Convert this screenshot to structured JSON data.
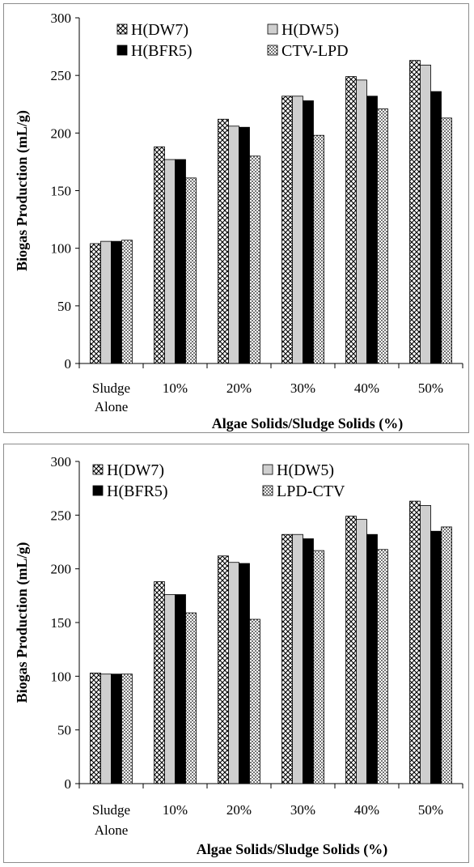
{
  "patterns": {
    "bar_border": "#000000",
    "light_gray": "#cfcfcf",
    "black": "#000000",
    "pattern_fill": "#ffffff"
  },
  "chart_data": [
    {
      "type": "bar",
      "categories": [
        "Sludge Alone",
        "10%",
        "20%",
        "30%",
        "40%",
        "50%"
      ],
      "category_lines": [
        [
          "Sludge",
          "Alone"
        ],
        [
          "10%"
        ],
        [
          "20%"
        ],
        [
          "30%"
        ],
        [
          "40%"
        ],
        [
          "50%"
        ]
      ],
      "xlabel": "Algae Solids/Sludge Solids (%)",
      "ylabel": "Biogas Production (mL/g)",
      "ylim": [
        0,
        300
      ],
      "yticks": [
        0,
        50,
        100,
        150,
        200,
        250,
        300
      ],
      "grid": false,
      "legend_position": "top-left, inside plot",
      "series": [
        {
          "name": "H(DW7)",
          "fill": "diamond-hatch",
          "values": [
            104,
            188,
            212,
            232,
            249,
            263
          ]
        },
        {
          "name": "H(DW5)",
          "fill": "light-gray",
          "values": [
            106,
            177,
            206,
            232,
            246,
            259
          ]
        },
        {
          "name": "H(BFR5)",
          "fill": "black",
          "values": [
            106,
            177,
            205,
            228,
            232,
            236
          ]
        },
        {
          "name": "CTV-LPD",
          "fill": "dots",
          "values": [
            107,
            161,
            180,
            198,
            221,
            213
          ]
        }
      ]
    },
    {
      "type": "bar",
      "categories": [
        "Sludge Alone",
        "10%",
        "20%",
        "30%",
        "40%",
        "50%"
      ],
      "category_lines": [
        [
          "Sludge",
          "Alone"
        ],
        [
          "10%"
        ],
        [
          "20%"
        ],
        [
          "30%"
        ],
        [
          "40%"
        ],
        [
          "50%"
        ]
      ],
      "xlabel": "Algae Solids/Sludge Solids (%)",
      "ylabel": "Biogas Production (mL/g)",
      "ylim": [
        0,
        300
      ],
      "yticks": [
        0,
        50,
        100,
        150,
        200,
        250,
        300
      ],
      "grid": false,
      "legend_position": "top-left, inside plot",
      "series": [
        {
          "name": "H(DW7)",
          "fill": "diamond-hatch",
          "values": [
            103,
            188,
            212,
            232,
            249,
            263
          ]
        },
        {
          "name": "H(DW5)",
          "fill": "light-gray",
          "values": [
            102,
            176,
            206,
            232,
            246,
            259
          ]
        },
        {
          "name": "H(BFR5)",
          "fill": "black",
          "values": [
            102,
            176,
            205,
            228,
            232,
            235
          ]
        },
        {
          "name": "LPD-CTV",
          "fill": "dots",
          "values": [
            102,
            159,
            153,
            217,
            218,
            239
          ]
        }
      ]
    }
  ]
}
